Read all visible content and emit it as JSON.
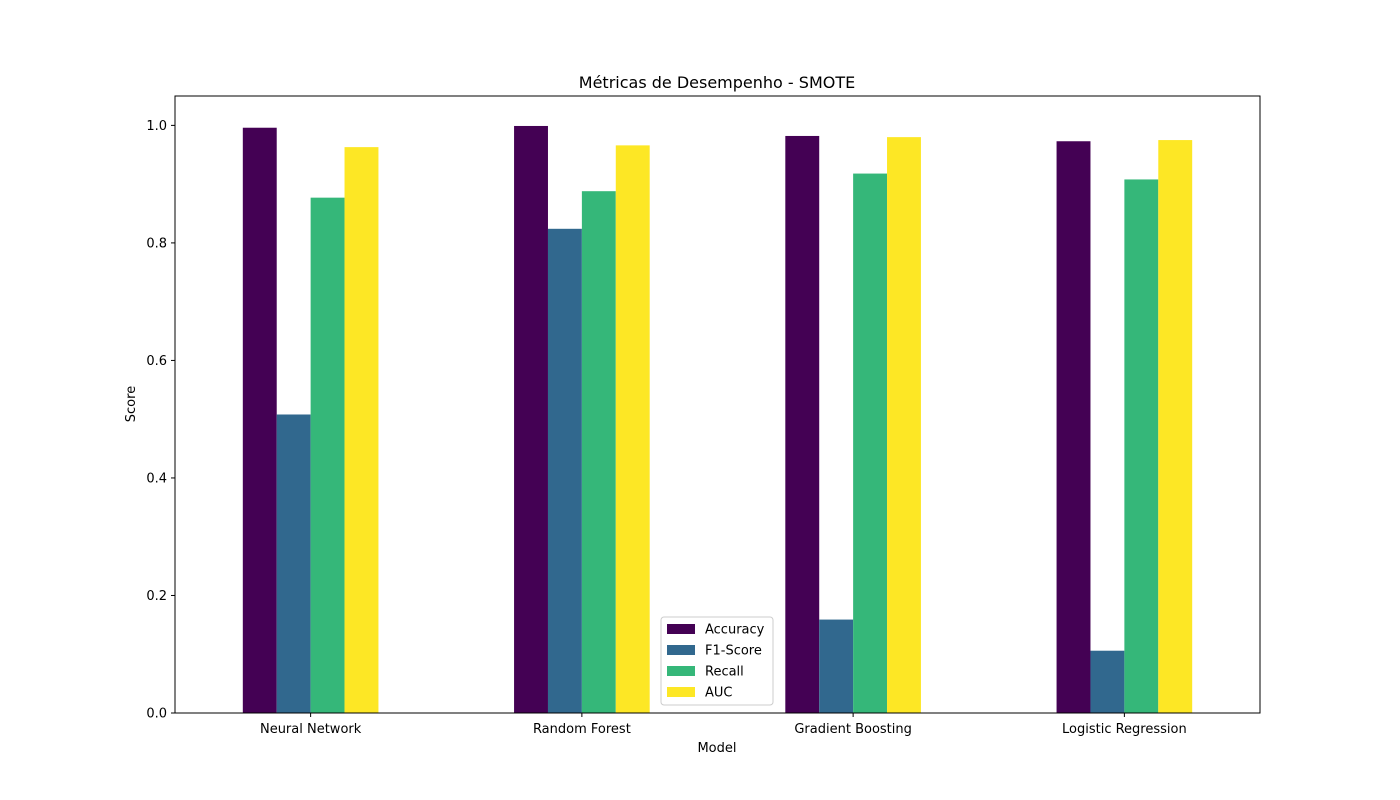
{
  "chart_data": {
    "type": "bar",
    "title": "Métricas de Desempenho - SMOTE",
    "xlabel": "Model",
    "ylabel": "Score",
    "ylim": [
      0,
      1.05
    ],
    "yticks": [
      0.0,
      0.2,
      0.4,
      0.6,
      0.8,
      1.0
    ],
    "ytick_labels": [
      "0.0",
      "0.2",
      "0.4",
      "0.6",
      "0.8",
      "1.0"
    ],
    "categories": [
      "Neural Network",
      "Random Forest",
      "Gradient Boosting",
      "Logistic Regression"
    ],
    "series": [
      {
        "name": "Accuracy",
        "color": "#440154",
        "values": [
          0.996,
          0.999,
          0.982,
          0.973
        ]
      },
      {
        "name": "F1-Score",
        "color": "#31688e",
        "values": [
          0.508,
          0.824,
          0.159,
          0.106
        ]
      },
      {
        "name": "Recall",
        "color": "#35b779",
        "values": [
          0.877,
          0.888,
          0.918,
          0.908
        ]
      },
      {
        "name": "AUC",
        "color": "#fde725",
        "values": [
          0.963,
          0.966,
          0.98,
          0.975
        ]
      }
    ],
    "legend": "lower-center",
    "grid": false
  }
}
